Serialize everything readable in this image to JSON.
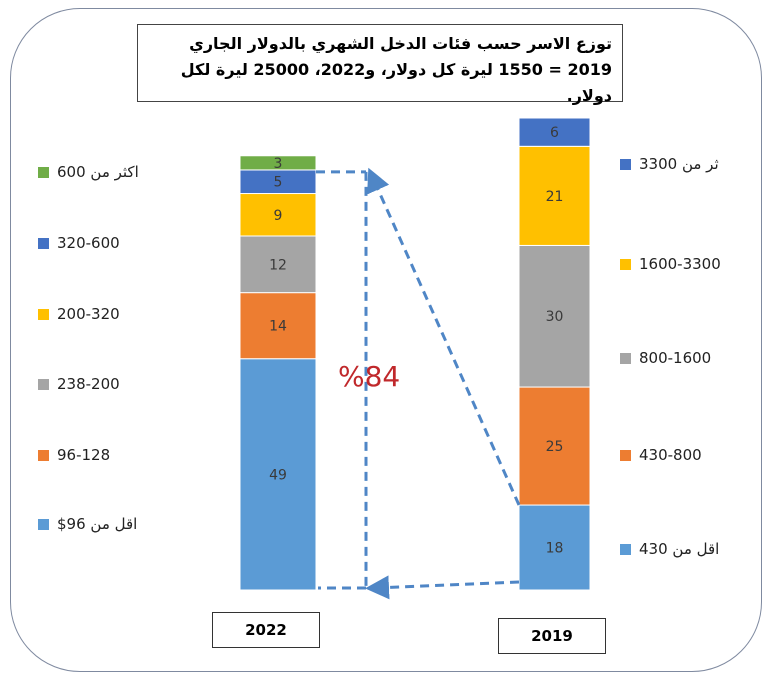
{
  "chart_data": {
    "type": "bar",
    "stacked": true,
    "title": "توزع الاسر حسب فئات الدخل الشهري بالدولار الجاري 2019 = 1550 ليرة كل دولار، و2022، 25000 ليرة لكل دولار.",
    "categories": [
      "2022",
      "2019"
    ],
    "bars": [
      {
        "category": "2022",
        "segments": [
          {
            "label": "اقل من 96$",
            "value": 49,
            "color": "#5b9bd5"
          },
          {
            "label": "96-128",
            "value": 14,
            "color": "#ed7d31"
          },
          {
            "label": "238-200",
            "value": 12,
            "color": "#a5a5a5"
          },
          {
            "label": "200-320",
            "value": 9,
            "color": "#ffc000"
          },
          {
            "label": "320-600",
            "value": 5,
            "color": "#4472c4"
          },
          {
            "label": "اكثر من 600",
            "value": 3,
            "color": "#70ad47"
          }
        ]
      },
      {
        "category": "2019",
        "segments": [
          {
            "label": "اقل من 430",
            "value": 18,
            "color": "#5b9bd5"
          },
          {
            "label": "430-800",
            "value": 25,
            "color": "#ed7d31"
          },
          {
            "label": "800-1600",
            "value": 30,
            "color": "#a5a5a5"
          },
          {
            "label": "1600-3300",
            "value": 21,
            "color": "#ffc000"
          },
          {
            "label": "اكثر من 3300",
            "value": 6,
            "color": "#4472c4"
          }
        ]
      }
    ],
    "legend_left": [
      {
        "label": "اكثر من 600",
        "color": "#70ad47"
      },
      {
        "label": "320-600",
        "color": "#4472c4"
      },
      {
        "label": "200-320",
        "color": "#ffc000"
      },
      {
        "label": "238-200",
        "color": "#a5a5a5"
      },
      {
        "label": "96-128",
        "color": "#ed7d31"
      },
      {
        "label": "اقل من 96$",
        "color": "#5b9bd5"
      }
    ],
    "legend_right": [
      {
        "label": "ثر من 3300",
        "color": "#4472c4"
      },
      {
        "label": "1600-3300",
        "color": "#ffc000"
      },
      {
        "label": "800-1600",
        "color": "#a5a5a5"
      },
      {
        "label": "430-800",
        "color": "#ed7d31"
      },
      {
        "label": "اقل من 430",
        "color": "#5b9bd5"
      }
    ],
    "annotation": "%84",
    "annotation_color": "#c0282b",
    "arrow_color": "#4f86c6"
  }
}
